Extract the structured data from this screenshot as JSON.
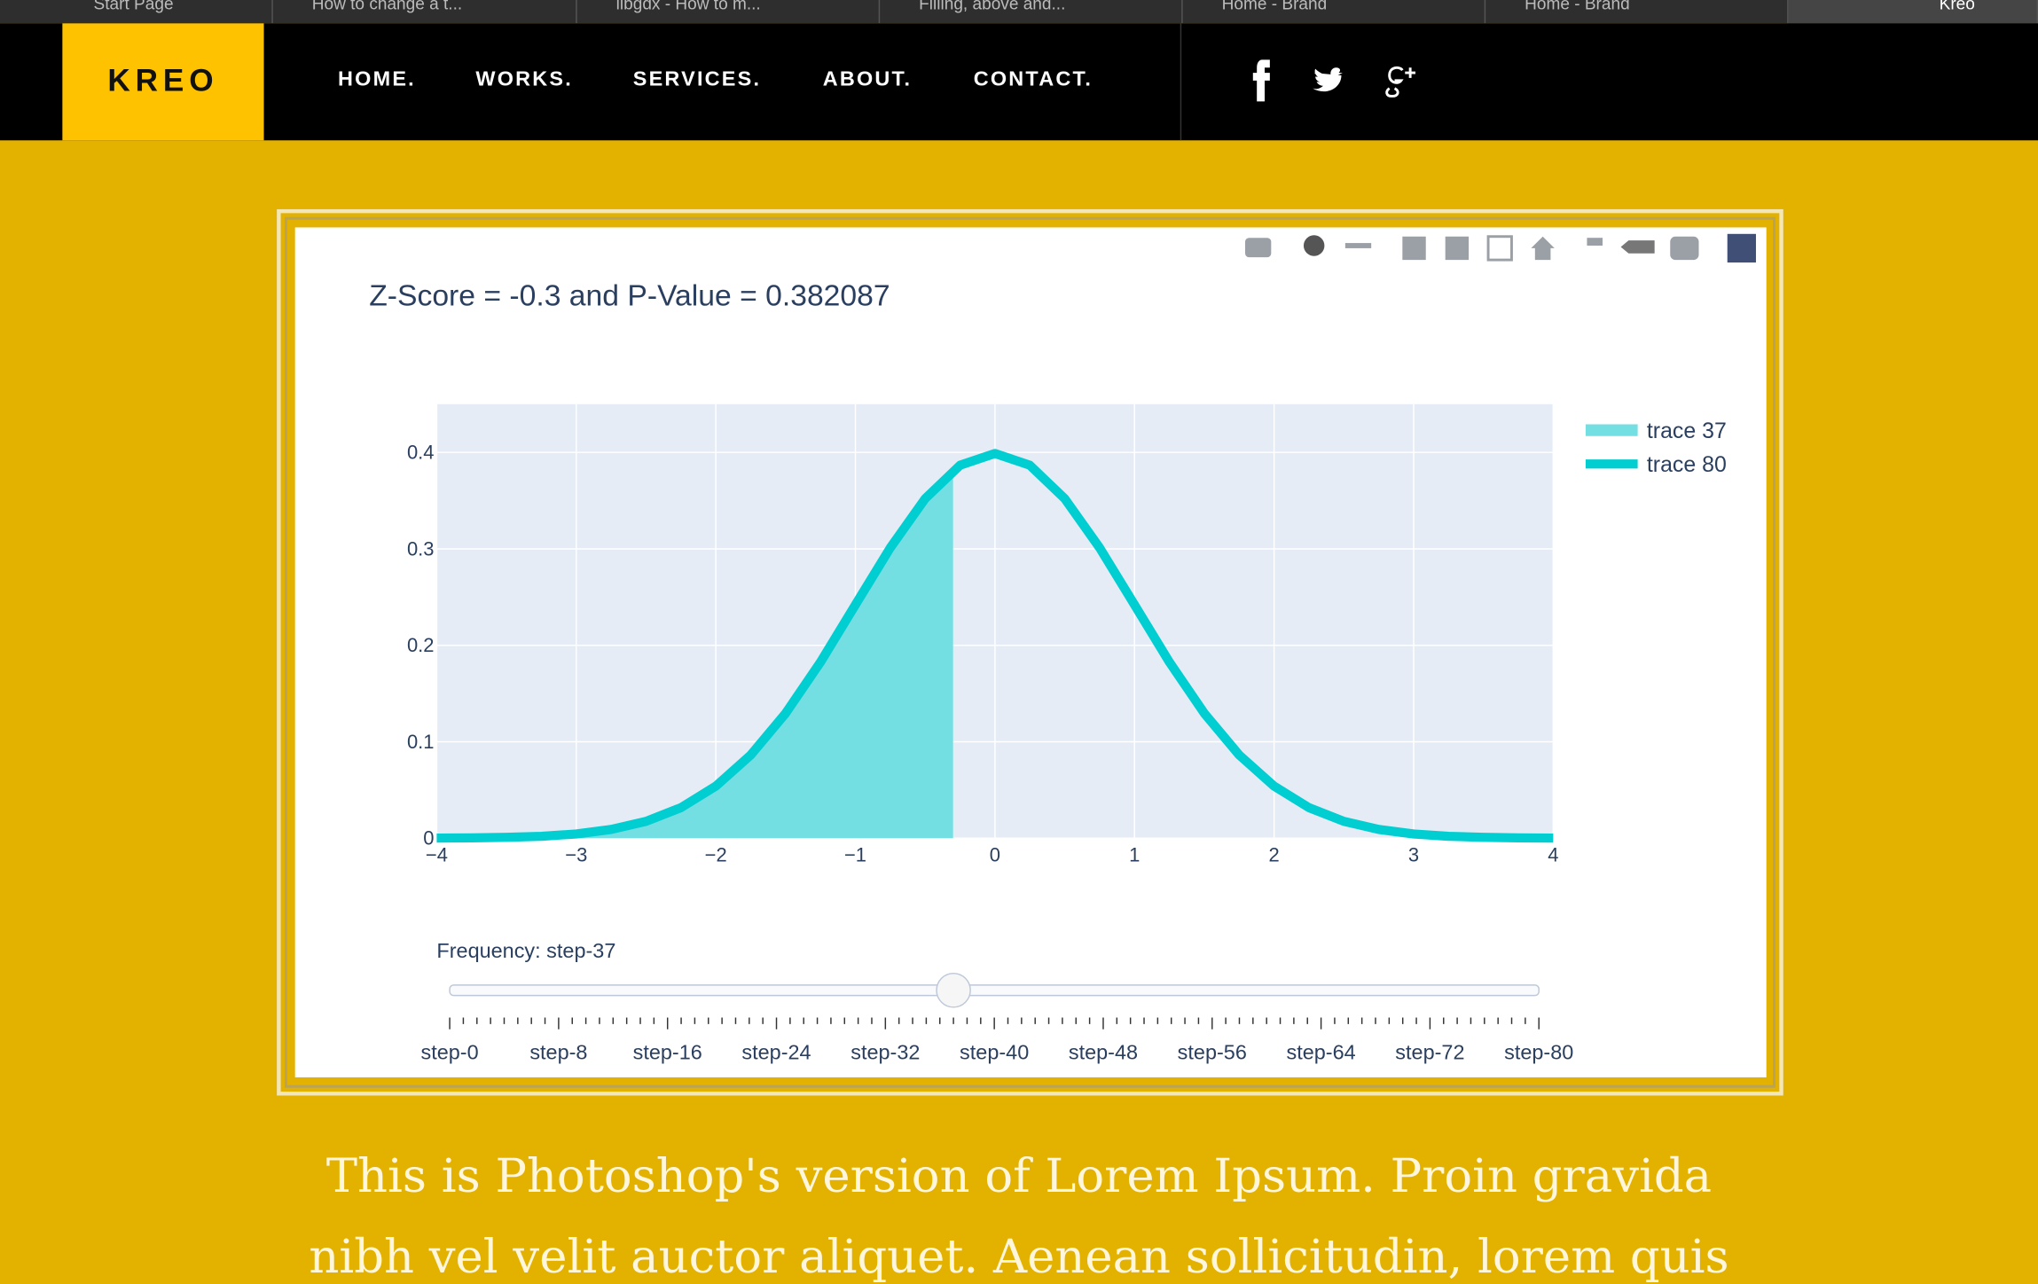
{
  "tabs": [
    "Start Page",
    "How to change a t...",
    "libgdx - How to m...",
    "Filling, above and...",
    "Home - Brand",
    "Home - Brand",
    "Kreo"
  ],
  "nav": {
    "logo": "KREO",
    "links": [
      "HOME.",
      "WORKS.",
      "SERVICES.",
      "ABOUT.",
      "CONTACT."
    ]
  },
  "chart_data": {
    "type": "line",
    "title": "Z-Score = -0.3 and P-Value = 0.382087",
    "series": [
      {
        "name": "trace 37",
        "color": "#73dfe3",
        "fill": true,
        "x": [
          -4,
          -3.75,
          -3.5,
          -3.25,
          -3,
          -2.75,
          -2.5,
          -2.25,
          -2,
          -1.75,
          -1.5,
          -1.25,
          -1,
          -0.75,
          -0.5,
          -0.3
        ],
        "values": [
          0.0001,
          0.0004,
          0.0009,
          0.002,
          0.0044,
          0.0091,
          0.0175,
          0.0317,
          0.054,
          0.0863,
          0.1295,
          0.1826,
          0.242,
          0.3011,
          0.3521,
          0.3814
        ]
      },
      {
        "name": "trace 80",
        "color": "#00ced1",
        "fill": false,
        "x": [
          -4,
          -3.75,
          -3.5,
          -3.25,
          -3,
          -2.75,
          -2.5,
          -2.25,
          -2,
          -1.75,
          -1.5,
          -1.25,
          -1,
          -0.75,
          -0.5,
          -0.25,
          0,
          0.25,
          0.5,
          0.75,
          1,
          1.25,
          1.5,
          1.75,
          2,
          2.25,
          2.5,
          2.75,
          3,
          3.25,
          3.5,
          3.75,
          4
        ],
        "values": [
          0.0001,
          0.0004,
          0.0009,
          0.002,
          0.0044,
          0.0091,
          0.0175,
          0.0317,
          0.054,
          0.0863,
          0.1295,
          0.1826,
          0.242,
          0.3011,
          0.3521,
          0.3867,
          0.3989,
          0.3867,
          0.3521,
          0.3011,
          0.242,
          0.1826,
          0.1295,
          0.0863,
          0.054,
          0.0317,
          0.0175,
          0.0091,
          0.0044,
          0.002,
          0.0009,
          0.0004,
          0.0001
        ]
      }
    ],
    "xlim": [
      -4,
      4
    ],
    "xticks": [
      {
        "value": -4,
        "label": "−4"
      },
      {
        "value": -3,
        "label": "−3"
      },
      {
        "value": -2,
        "label": "−2"
      },
      {
        "value": -1,
        "label": "−1"
      },
      0,
      1,
      2,
      3,
      4
    ],
    "ylim": [
      0,
      0.45
    ],
    "yticks": [
      0,
      0.1,
      0.2,
      0.3,
      0.4
    ],
    "grid": true,
    "slider": {
      "label": "Frequency: step-37",
      "steps": 80,
      "active": 37,
      "labels": [
        "step-0",
        "step-8",
        "step-16",
        "step-24",
        "step-32",
        "step-40",
        "step-48",
        "step-56",
        "step-64",
        "step-72",
        "step-80"
      ]
    }
  },
  "body_text": [
    "This is Photoshop's version of Lorem Ipsum. Proin gravida",
    "nibh vel velit auctor aliquet. Aenean sollicitudin, lorem quis"
  ]
}
